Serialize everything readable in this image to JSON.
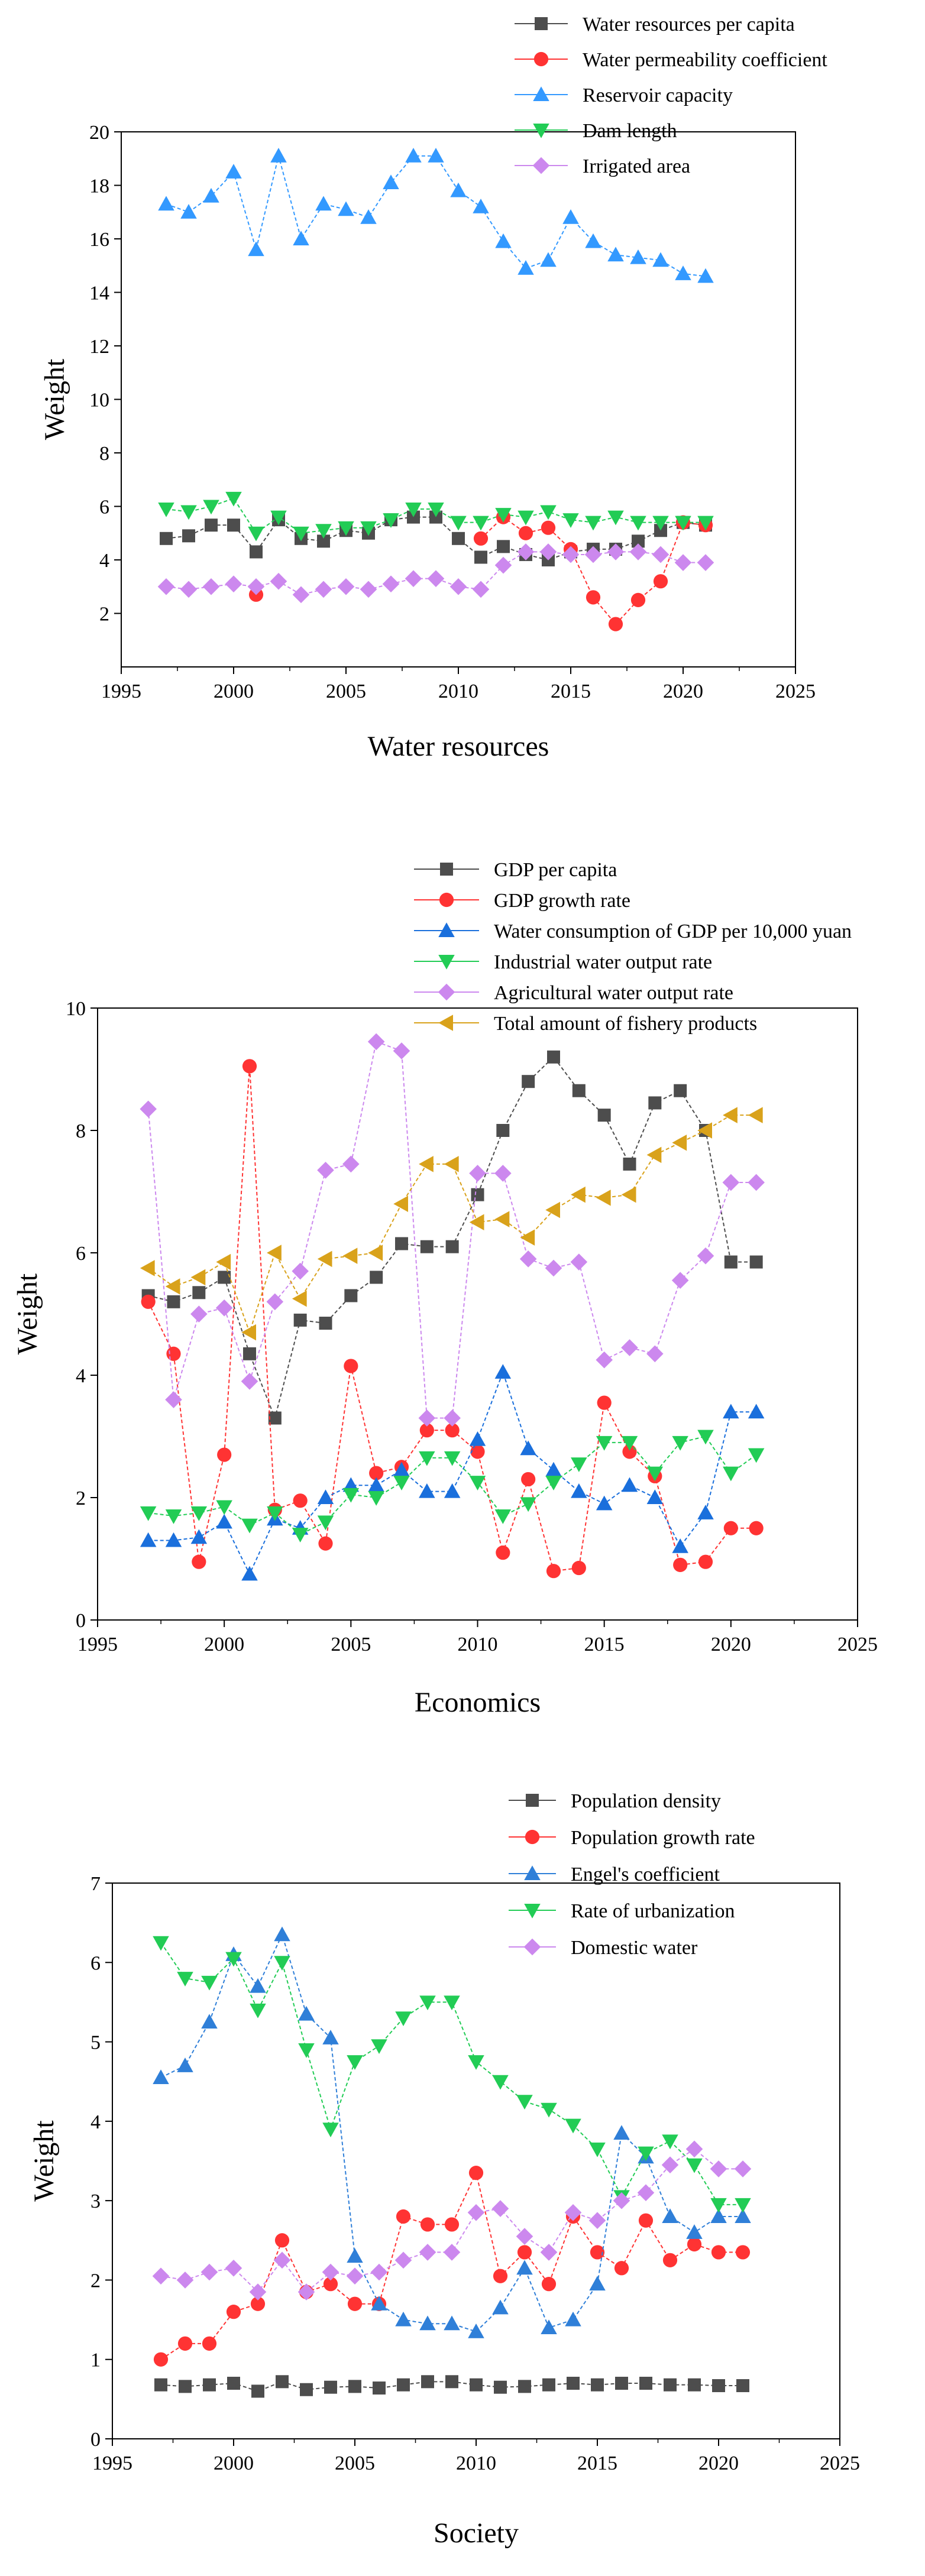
{
  "chart_data": [
    {
      "type": "line",
      "panel": "water-resources",
      "title": "",
      "xlabel": "Water resources",
      "ylabel": "Weight",
      "xlim": [
        1995,
        2025
      ],
      "ylim": [
        0,
        20
      ],
      "xticks": [
        1995,
        2000,
        2005,
        2010,
        2015,
        2020,
        2025
      ],
      "yticks": [
        2,
        4,
        6,
        8,
        10,
        12,
        14,
        16,
        18,
        20
      ],
      "grid": false,
      "legend_position": "top-right",
      "x": [
        1997,
        1998,
        1999,
        2000,
        2001,
        2002,
        2003,
        2004,
        2005,
        2006,
        2007,
        2008,
        2009,
        2010,
        2011,
        2012,
        2013,
        2014,
        2015,
        2016,
        2017,
        2018,
        2019,
        2020,
        2021
      ],
      "series": [
        {
          "name": "Water resources per capita",
          "color": "#4d4d4d",
          "marker": "square",
          "values": [
            4.8,
            4.9,
            5.3,
            5.3,
            4.3,
            5.5,
            4.8,
            4.7,
            5.1,
            5.0,
            5.5,
            5.6,
            5.6,
            4.8,
            4.1,
            4.5,
            4.2,
            4.0,
            4.3,
            4.4,
            4.4,
            4.7,
            5.1,
            5.4,
            5.3
          ]
        },
        {
          "name": "Water permeability coefficient",
          "color": "#ff3333",
          "marker": "circle",
          "values": [
            null,
            null,
            null,
            null,
            2.7,
            null,
            null,
            null,
            null,
            null,
            null,
            null,
            null,
            null,
            4.8,
            5.6,
            5.0,
            5.2,
            4.4,
            2.6,
            1.6,
            2.5,
            3.2,
            5.4,
            5.3
          ]
        },
        {
          "name": "Reservoir capacity",
          "color": "#3399ff",
          "marker": "triangle-up",
          "values": [
            17.3,
            17.0,
            17.6,
            18.5,
            15.6,
            19.1,
            16.0,
            17.3,
            17.1,
            16.8,
            18.1,
            19.1,
            19.1,
            17.8,
            17.2,
            15.9,
            14.9,
            15.2,
            16.8,
            15.9,
            15.4,
            15.3,
            15.2,
            14.7,
            14.6
          ]
        },
        {
          "name": "Dam length",
          "color": "#22cc55",
          "marker": "triangle-down",
          "values": [
            5.9,
            5.8,
            6.0,
            6.3,
            5.0,
            5.6,
            5.0,
            5.1,
            5.2,
            5.2,
            5.5,
            5.9,
            5.9,
            5.4,
            5.4,
            5.7,
            5.6,
            5.8,
            5.5,
            5.4,
            5.6,
            5.4,
            5.4,
            5.4,
            5.4
          ]
        },
        {
          "name": "Irrigated area",
          "color": "#cc88ee",
          "marker": "diamond",
          "values": [
            3.0,
            2.9,
            3.0,
            3.1,
            3.0,
            3.2,
            2.7,
            2.9,
            3.0,
            2.9,
            3.1,
            3.3,
            3.3,
            3.0,
            2.9,
            3.8,
            4.3,
            4.3,
            4.2,
            4.2,
            4.3,
            4.3,
            4.2,
            3.9,
            3.9
          ]
        }
      ]
    },
    {
      "type": "line",
      "panel": "economics",
      "title": "",
      "xlabel": "Economics",
      "ylabel": "Weight",
      "xlim": [
        1995,
        2025
      ],
      "ylim": [
        0,
        10
      ],
      "xticks": [
        1995,
        2000,
        2005,
        2010,
        2015,
        2020,
        2025
      ],
      "yticks": [
        0,
        2,
        4,
        6,
        8,
        10
      ],
      "grid": false,
      "legend_position": "top-right",
      "x": [
        1997,
        1998,
        1999,
        2000,
        2001,
        2002,
        2003,
        2004,
        2005,
        2006,
        2007,
        2008,
        2009,
        2010,
        2011,
        2012,
        2013,
        2014,
        2015,
        2016,
        2017,
        2018,
        2019,
        2020,
        2021
      ],
      "series": [
        {
          "name": "GDP per capita",
          "color": "#4d4d4d",
          "marker": "square",
          "values": [
            5.3,
            5.2,
            5.35,
            5.6,
            4.35,
            3.3,
            4.9,
            4.85,
            5.3,
            5.6,
            6.15,
            6.1,
            6.1,
            6.95,
            8.0,
            8.8,
            9.2,
            8.65,
            8.25,
            7.45,
            8.45,
            8.65,
            8.0,
            5.85,
            5.85
          ]
        },
        {
          "name": "GDP growth rate",
          "color": "#ff3333",
          "marker": "circle",
          "values": [
            5.2,
            4.35,
            0.95,
            2.7,
            9.05,
            1.8,
            1.95,
            1.25,
            4.15,
            2.4,
            2.5,
            3.1,
            3.1,
            2.75,
            1.1,
            2.3,
            0.8,
            0.85,
            3.55,
            2.75,
            2.35,
            0.9,
            0.95,
            1.5,
            1.5
          ]
        },
        {
          "name": "Water consumption of GDP per 10,000 yuan",
          "color": "#1a6fdc",
          "marker": "triangle-up",
          "values": [
            1.3,
            1.3,
            1.35,
            1.6,
            0.75,
            1.65,
            1.5,
            2.0,
            2.2,
            2.2,
            2.45,
            2.1,
            2.1,
            2.95,
            4.05,
            2.8,
            2.45,
            2.1,
            1.9,
            2.2,
            2.0,
            1.2,
            1.75,
            3.4,
            3.4
          ]
        },
        {
          "name": "Industrial water output rate",
          "color": "#22cc55",
          "marker": "triangle-down",
          "values": [
            1.75,
            1.7,
            1.75,
            1.85,
            1.55,
            1.75,
            1.4,
            1.6,
            2.05,
            2.0,
            2.25,
            2.65,
            2.65,
            2.25,
            1.7,
            1.9,
            2.25,
            2.55,
            2.9,
            2.9,
            2.4,
            2.9,
            3.0,
            2.4,
            2.7
          ]
        },
        {
          "name": "Agricultural water output rate",
          "color": "#cc88ee",
          "marker": "diamond",
          "values": [
            8.35,
            3.6,
            5.0,
            5.1,
            3.9,
            5.2,
            5.7,
            7.35,
            7.45,
            9.45,
            9.3,
            3.3,
            3.3,
            7.3,
            7.3,
            5.9,
            5.75,
            5.85,
            4.25,
            4.45,
            4.35,
            5.55,
            5.95,
            7.15,
            7.15
          ]
        },
        {
          "name": "Total amount of fishery products",
          "color": "#d9a21b",
          "marker": "triangle-left",
          "values": [
            5.75,
            5.45,
            5.6,
            5.85,
            4.7,
            6.0,
            5.25,
            5.9,
            5.95,
            6.0,
            6.8,
            7.45,
            7.45,
            6.5,
            6.55,
            6.25,
            6.7,
            6.95,
            6.9,
            6.95,
            7.6,
            7.8,
            8.0,
            8.25,
            8.25
          ]
        }
      ]
    },
    {
      "type": "line",
      "panel": "society",
      "title": "",
      "xlabel": "Society",
      "ylabel": "Weight",
      "xlim": [
        1995,
        2025
      ],
      "ylim": [
        0,
        7
      ],
      "xticks": [
        1995,
        2000,
        2005,
        2010,
        2015,
        2020,
        2025
      ],
      "yticks": [
        0,
        1,
        2,
        3,
        4,
        5,
        6,
        7
      ],
      "grid": false,
      "legend_position": "top-right",
      "x": [
        1997,
        1998,
        1999,
        2000,
        2001,
        2002,
        2003,
        2004,
        2005,
        2006,
        2007,
        2008,
        2009,
        2010,
        2011,
        2012,
        2013,
        2014,
        2015,
        2016,
        2017,
        2018,
        2019,
        2020,
        2021
      ],
      "series": [
        {
          "name": "Population density",
          "color": "#4d4d4d",
          "marker": "square",
          "values": [
            0.68,
            0.66,
            0.68,
            0.7,
            0.6,
            0.72,
            0.62,
            0.65,
            0.66,
            0.64,
            0.68,
            0.72,
            0.72,
            0.68,
            0.65,
            0.66,
            0.68,
            0.7,
            0.68,
            0.7,
            0.7,
            0.68,
            0.68,
            0.67,
            0.67
          ]
        },
        {
          "name": "Population growth rate",
          "color": "#ff3333",
          "marker": "circle",
          "values": [
            1.0,
            1.2,
            1.2,
            1.6,
            1.7,
            2.5,
            1.85,
            1.95,
            1.7,
            1.7,
            2.8,
            2.7,
            2.7,
            3.35,
            2.05,
            2.35,
            1.95,
            2.8,
            2.35,
            2.15,
            2.75,
            2.25,
            2.45,
            2.35,
            2.35
          ]
        },
        {
          "name": "Engel's coefficient",
          "color": "#2f7fd8",
          "marker": "triangle-up",
          "values": [
            4.55,
            4.7,
            5.25,
            6.1,
            5.7,
            6.35,
            5.35,
            5.05,
            2.3,
            1.7,
            1.5,
            1.45,
            1.45,
            1.35,
            1.65,
            2.15,
            1.4,
            1.5,
            1.95,
            3.85,
            3.55,
            2.8,
            2.6,
            2.8,
            2.8
          ]
        },
        {
          "name": "Rate of urbanization",
          "color": "#22cc55",
          "marker": "triangle-down",
          "values": [
            6.25,
            5.8,
            5.75,
            6.05,
            5.4,
            6.0,
            4.9,
            3.9,
            4.75,
            4.95,
            5.3,
            5.5,
            5.5,
            4.75,
            4.5,
            4.25,
            4.15,
            3.95,
            3.65,
            3.05,
            3.6,
            3.75,
            3.45,
            2.95,
            2.95
          ]
        },
        {
          "name": "Domestic water",
          "color": "#cc88ee",
          "marker": "diamond",
          "values": [
            2.05,
            2.0,
            2.1,
            2.15,
            1.85,
            2.25,
            1.85,
            2.1,
            2.05,
            2.1,
            2.25,
            2.35,
            2.35,
            2.85,
            2.9,
            2.55,
            2.35,
            2.85,
            2.75,
            3.0,
            3.1,
            3.45,
            3.65,
            3.4,
            3.4
          ]
        }
      ]
    }
  ]
}
